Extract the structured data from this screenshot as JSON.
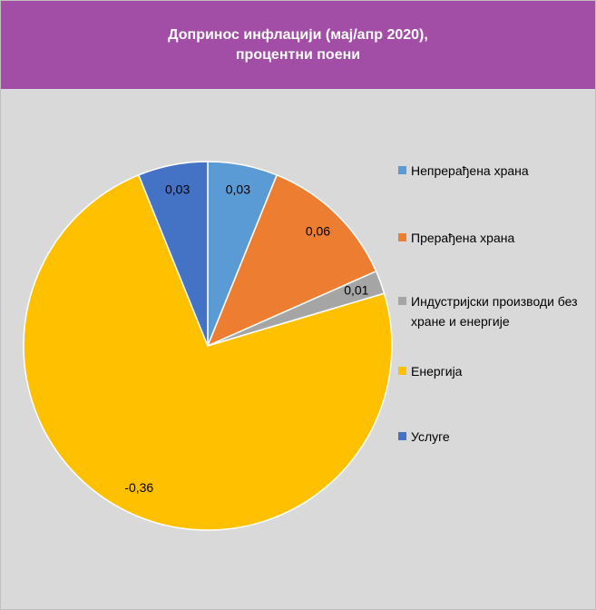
{
  "chart_data": {
    "type": "pie",
    "title": "Допринос инфлацији (мај/апр 2020), процентни поени",
    "categories": [
      "Непрерађена храна",
      "Прерађена храна",
      "Индустријски производи без хране и енергије",
      "Енергија",
      "Услуге"
    ],
    "values": [
      0.03,
      0.06,
      0.01,
      -0.36,
      0.03
    ],
    "value_labels": [
      "0,03",
      "0,06",
      "0,01",
      "-0,36",
      "0,03"
    ],
    "colors": [
      "#5b9bd5",
      "#ed7d31",
      "#a5a5a5",
      "#ffc000",
      "#4472c4"
    ],
    "legend": "right"
  }
}
